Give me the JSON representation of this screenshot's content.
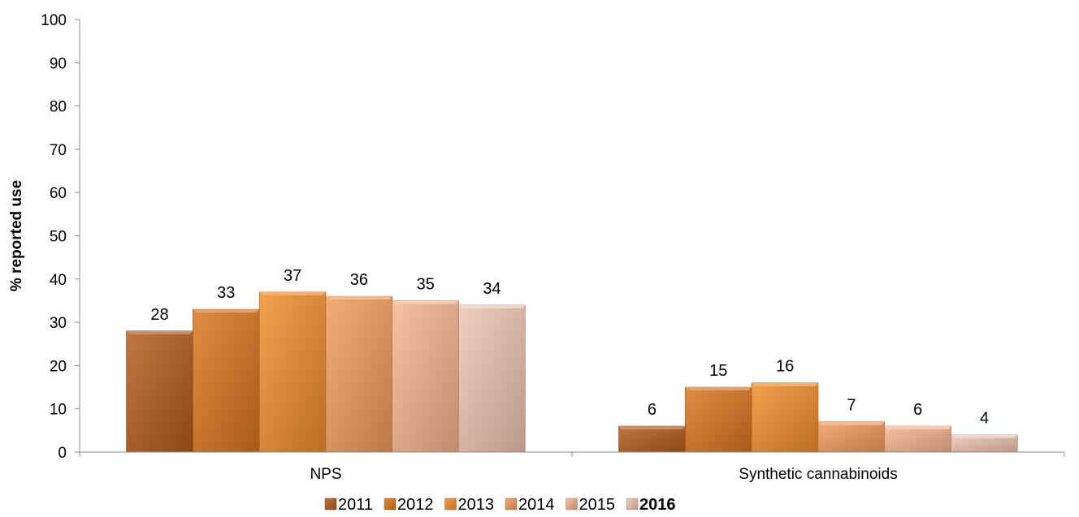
{
  "chart_data": {
    "type": "bar",
    "title": "",
    "xlabel": "",
    "ylabel": "% reported use",
    "ylim": [
      0,
      100
    ],
    "yticks": [
      "0",
      "10",
      "20",
      "30",
      "40",
      "50",
      "60",
      "70",
      "80",
      "90",
      "100"
    ],
    "grid": false,
    "legend_position": "bottom",
    "categories": [
      "NPS",
      "Synthetic cannabinoids"
    ],
    "series": [
      {
        "name": "2011",
        "values": [
          28,
          6
        ],
        "color": "#b35a1a",
        "bold": false
      },
      {
        "name": "2012",
        "values": [
          33,
          15
        ],
        "color": "#d9741c",
        "bold": false
      },
      {
        "name": "2013",
        "values": [
          37,
          16
        ],
        "color": "#f08c2a",
        "bold": false
      },
      {
        "name": "2014",
        "values": [
          36,
          7
        ],
        "color": "#f29a5c",
        "bold": false
      },
      {
        "name": "2015",
        "values": [
          35,
          6
        ],
        "color": "#f5b48f",
        "bold": false
      },
      {
        "name": "2016",
        "values": [
          34,
          4
        ],
        "color": "#efc4b0",
        "bold": true
      }
    ]
  }
}
